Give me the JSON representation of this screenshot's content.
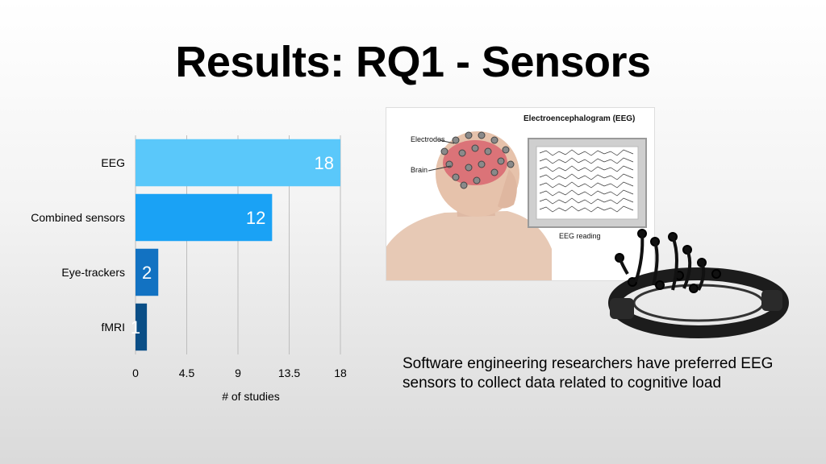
{
  "slide": {
    "title": "Results: RQ1 - Sensors",
    "caption": "Software engineering researchers have preferred EEG sensors to collect data related to cognitive load"
  },
  "image": {
    "title": "Electroencephalogram (EEG)",
    "labels": {
      "electrodes": "Electrodes",
      "brain": "Brain",
      "reading": "EEG reading"
    }
  },
  "colors": {
    "bars": [
      "#5ac8fa",
      "#1aa2f5",
      "#1272c2",
      "#0a4e86"
    ],
    "grid": "#bdbdbd"
  },
  "chart_data": {
    "type": "bar",
    "orientation": "horizontal",
    "categories": [
      "EEG",
      "Combined sensors",
      "Eye-trackers",
      "fMRI"
    ],
    "values": [
      18,
      12,
      2,
      1
    ],
    "data_labels": [
      "18",
      "12",
      "2",
      "1"
    ],
    "xlabel": "# of studies",
    "ylabel": "",
    "xlim": [
      0,
      18
    ],
    "xticks": [
      0,
      4.5,
      9,
      13.5,
      18
    ],
    "xtick_labels": [
      "0",
      "4.5",
      "9",
      "13.5",
      "18"
    ],
    "grid": true
  }
}
